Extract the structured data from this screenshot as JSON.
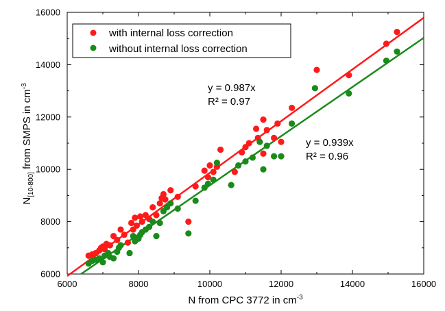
{
  "chart_data": {
    "type": "scatter",
    "title": "",
    "xlabel": {
      "main": "N from CPC 3772 in cm",
      "sup": "-3"
    },
    "ylabel": {
      "main": "N",
      "sub": "[10-800]",
      "rest": " from SMPS in cm",
      "sup": "-3"
    },
    "xlim": [
      6000,
      16000
    ],
    "ylim": [
      6000,
      16000
    ],
    "xticks": [
      6000,
      8000,
      10000,
      12000,
      14000,
      16000
    ],
    "yticks": [
      6000,
      8000,
      10000,
      12000,
      14000,
      16000
    ],
    "xtick_labels": [
      "6000",
      "8000",
      "10000",
      "12000",
      "14000",
      "16000"
    ],
    "ytick_labels": [
      "6000",
      "8000",
      "10000",
      "12000",
      "14000",
      "16000"
    ],
    "legend_position": "top-left",
    "series": [
      {
        "name": "with internal loss correction",
        "color": "#ff1a1a",
        "fit_slope": 0.987,
        "fit_range": [
          6000,
          16000
        ],
        "equation": "y = 0.987x",
        "r2": "R² = 0.97",
        "points": [
          [
            6600,
            6700
          ],
          [
            6700,
            6750
          ],
          [
            6800,
            6800
          ],
          [
            6900,
            6900
          ],
          [
            6950,
            7000
          ],
          [
            7000,
            7050
          ],
          [
            7050,
            6950
          ],
          [
            7100,
            7150
          ],
          [
            7200,
            7100
          ],
          [
            7300,
            7450
          ],
          [
            7400,
            7300
          ],
          [
            7500,
            7700
          ],
          [
            7600,
            7500
          ],
          [
            7700,
            7200
          ],
          [
            7800,
            7950
          ],
          [
            7850,
            7700
          ],
          [
            7900,
            8150
          ],
          [
            7950,
            7850
          ],
          [
            8050,
            8200
          ],
          [
            8100,
            8000
          ],
          [
            8200,
            8250
          ],
          [
            8300,
            8100
          ],
          [
            8400,
            8550
          ],
          [
            8500,
            8250
          ],
          [
            8600,
            8700
          ],
          [
            8650,
            8900
          ],
          [
            8700,
            9050
          ],
          [
            8750,
            8850
          ],
          [
            8900,
            9200
          ],
          [
            9100,
            8950
          ],
          [
            9400,
            8000
          ],
          [
            9600,
            9350
          ],
          [
            9850,
            9950
          ],
          [
            9950,
            9700
          ],
          [
            10000,
            10150
          ],
          [
            10100,
            9900
          ],
          [
            10200,
            10100
          ],
          [
            10300,
            10750
          ],
          [
            10700,
            9900
          ],
          [
            10900,
            10650
          ],
          [
            11000,
            10850
          ],
          [
            11100,
            11000
          ],
          [
            11300,
            11550
          ],
          [
            11350,
            11200
          ],
          [
            11500,
            11900
          ],
          [
            11500,
            10600
          ],
          [
            11600,
            11500
          ],
          [
            11800,
            11200
          ],
          [
            11900,
            11750
          ],
          [
            12000,
            11050
          ],
          [
            12300,
            12350
          ],
          [
            13000,
            13800
          ],
          [
            13900,
            13600
          ],
          [
            14950,
            14800
          ],
          [
            15250,
            15250
          ]
        ]
      },
      {
        "name": "without internal loss correction",
        "color": "#1a8a1a",
        "fit_slope": 0.939,
        "fit_range": [
          6390,
          16000
        ],
        "equation": "y = 0.939x",
        "r2": "R² = 0.96",
        "points": [
          [
            6600,
            6400
          ],
          [
            6700,
            6500
          ],
          [
            6800,
            6550
          ],
          [
            6900,
            6600
          ],
          [
            7000,
            6450
          ],
          [
            7050,
            6700
          ],
          [
            7150,
            6800
          ],
          [
            7200,
            6650
          ],
          [
            7300,
            6600
          ],
          [
            7400,
            6850
          ],
          [
            7450,
            7000
          ],
          [
            7500,
            7100
          ],
          [
            7750,
            6800
          ],
          [
            7850,
            7450
          ],
          [
            7900,
            7250
          ],
          [
            8000,
            7350
          ],
          [
            8050,
            7500
          ],
          [
            8100,
            7600
          ],
          [
            8200,
            7700
          ],
          [
            8300,
            7800
          ],
          [
            8400,
            8000
          ],
          [
            8500,
            7450
          ],
          [
            8600,
            7950
          ],
          [
            8700,
            8400
          ],
          [
            8800,
            8550
          ],
          [
            8900,
            8700
          ],
          [
            9100,
            8500
          ],
          [
            9400,
            7550
          ],
          [
            9600,
            8800
          ],
          [
            9850,
            9300
          ],
          [
            9950,
            9450
          ],
          [
            10100,
            9600
          ],
          [
            10200,
            10250
          ],
          [
            10600,
            9400
          ],
          [
            10800,
            10150
          ],
          [
            11000,
            10300
          ],
          [
            11200,
            10450
          ],
          [
            11400,
            11050
          ],
          [
            11500,
            10000
          ],
          [
            11600,
            10900
          ],
          [
            11800,
            10500
          ],
          [
            12000,
            10500
          ],
          [
            12300,
            11750
          ],
          [
            12950,
            13100
          ],
          [
            13900,
            12900
          ],
          [
            14950,
            14150
          ],
          [
            15250,
            14500
          ]
        ]
      }
    ]
  }
}
